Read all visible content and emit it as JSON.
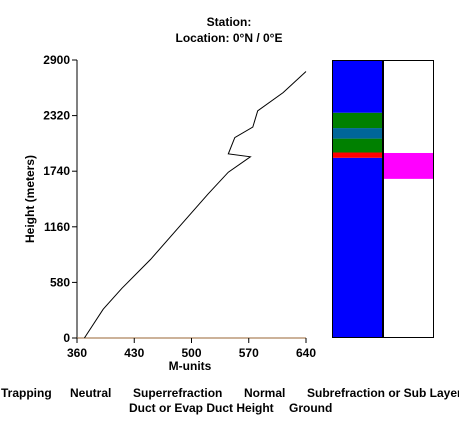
{
  "header": {
    "station": "Station:",
    "location": "Location:   0°N /   0°E"
  },
  "chart_data": {
    "type": "line",
    "xlabel": "M-units",
    "ylabel": "Height (meters)",
    "xlim": [
      360,
      640
    ],
    "ylim": [
      0,
      2900
    ],
    "x_ticks": [
      "360",
      "430",
      "500",
      "570",
      "640"
    ],
    "y_ticks": [
      "0",
      "580",
      "1160",
      "1740",
      "2320",
      "2900"
    ],
    "ground_height": 0,
    "series": [
      {
        "x": [
          369,
          392,
          415,
          450,
          485,
          520,
          545,
          572,
          545,
          553,
          575,
          581,
          612,
          640
        ],
        "y": [
          0,
          300,
          520,
          820,
          1160,
          1500,
          1730,
          1890,
          1920,
          2090,
          2200,
          2370,
          2560,
          2780
        ]
      }
    ],
    "colors": {
      "line": "#000000",
      "ground": "#996633",
      "trapping": "#ff0000",
      "neutral": "#ffff00",
      "superrefraction": "#008000",
      "normal": "#0000ff",
      "subrefraction": "#006699",
      "duct": "#ff00ff"
    },
    "layer_bars": [
      {
        "segments": [
          {
            "from": 0,
            "to": 1880,
            "type": "normal"
          },
          {
            "from": 1880,
            "to": 1935,
            "type": "trapping"
          },
          {
            "from": 1935,
            "to": 2080,
            "type": "superrefraction"
          },
          {
            "from": 2080,
            "to": 2190,
            "type": "subrefraction"
          },
          {
            "from": 2190,
            "to": 2350,
            "type": "superrefraction"
          },
          {
            "from": 2350,
            "to": 2900,
            "type": "normal"
          }
        ]
      },
      {
        "segments": [
          {
            "from": 1660,
            "to": 1930,
            "type": "duct"
          }
        ]
      }
    ],
    "legend": [
      {
        "key": "trapping",
        "label": "Trapping"
      },
      {
        "key": "neutral",
        "label": "Neutral"
      },
      {
        "key": "superrefraction",
        "label": "Superrefraction"
      },
      {
        "key": "normal",
        "label": "Normal"
      },
      {
        "key": "subrefraction",
        "label": "Subrefraction or Sub Layer"
      },
      {
        "key": "duct",
        "label": "Duct or Evap Duct Height"
      },
      {
        "key": "ground",
        "label": "Ground"
      }
    ]
  }
}
